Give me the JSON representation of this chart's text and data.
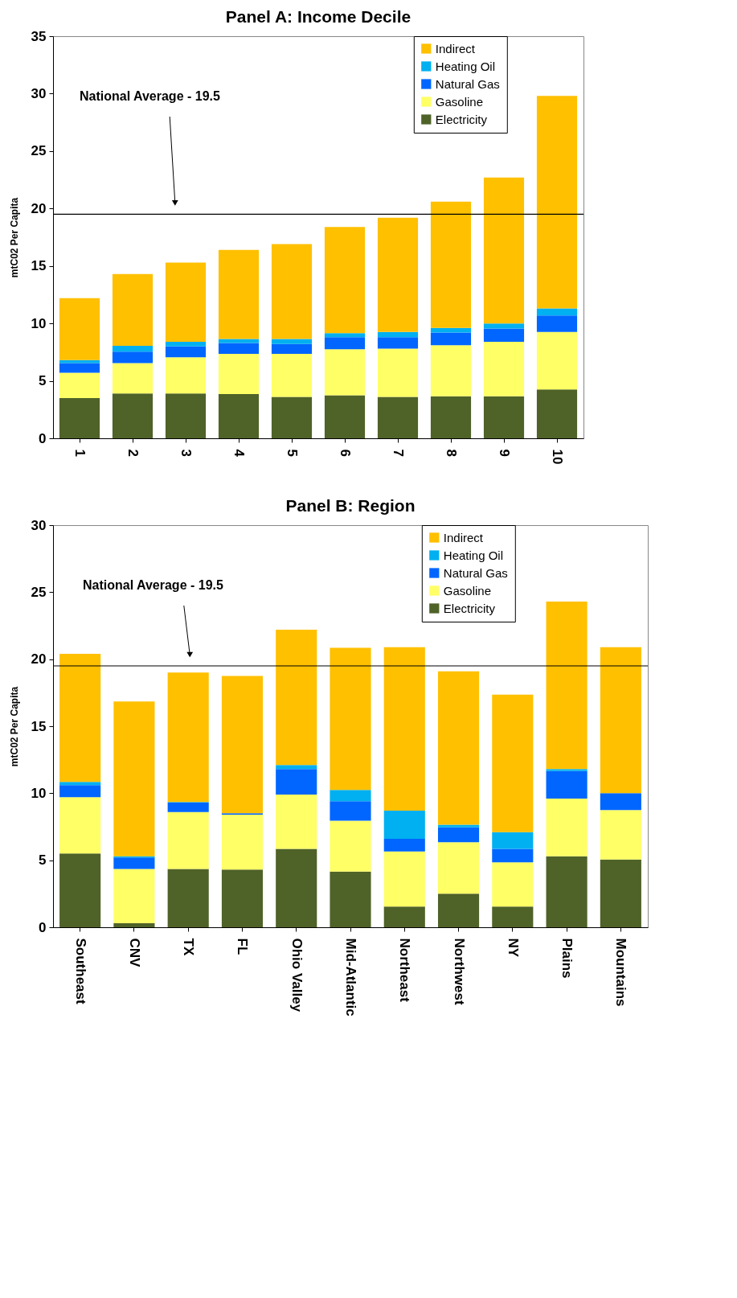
{
  "chart_data": [
    {
      "type": "bar",
      "stacked": true,
      "title": "Panel A: Income Decile",
      "ylabel": "mtC02 Per Capita",
      "categories": [
        "1",
        "2",
        "3",
        "4",
        "5",
        "6",
        "7",
        "8",
        "9",
        "10"
      ],
      "series": [
        {
          "name": "Electricity",
          "color": "#4f6228",
          "values": [
            3.5,
            3.9,
            3.9,
            3.85,
            3.6,
            3.75,
            3.6,
            3.65,
            3.65,
            4.25
          ]
        },
        {
          "name": "Gasoline",
          "color": "#ffff66",
          "values": [
            2.2,
            2.65,
            3.15,
            3.5,
            3.75,
            4.0,
            4.2,
            4.45,
            4.75,
            5.0
          ]
        },
        {
          "name": "Natural Gas",
          "color": "#0066ff",
          "values": [
            0.85,
            1.0,
            0.95,
            0.95,
            0.85,
            1.05,
            1.0,
            1.1,
            1.15,
            1.45
          ]
        },
        {
          "name": "Heating Oil",
          "color": "#00b0f0",
          "values": [
            0.25,
            0.5,
            0.4,
            0.35,
            0.45,
            0.35,
            0.45,
            0.4,
            0.45,
            0.6
          ]
        },
        {
          "name": "Indirect",
          "color": "#ffc000",
          "values": [
            5.4,
            6.25,
            6.9,
            7.75,
            8.25,
            9.25,
            9.95,
            11.0,
            12.7,
            18.5
          ]
        }
      ],
      "ylim": [
        0,
        35
      ],
      "yticks": [
        0,
        5,
        10,
        15,
        20,
        25,
        30,
        35
      ],
      "grid": false,
      "legend": "top right",
      "annotations": [
        "National Average - 19.5"
      ],
      "ref_lines": [
        {
          "axis": "y",
          "value": 19.5,
          "color": "#000000"
        }
      ]
    },
    {
      "type": "bar",
      "stacked": true,
      "title": "Panel B: Region",
      "ylabel": "mtC02 Per Capita",
      "categories": [
        "Southeast",
        "CNV",
        "TX",
        "FL",
        "Ohio Valley",
        "Mid-Atlantic",
        "Northeast",
        "Northwest",
        "NY",
        "Plains",
        "Mountains"
      ],
      "series": [
        {
          "name": "Electricity",
          "color": "#4f6228",
          "values": [
            5.5,
            0.3,
            4.35,
            4.3,
            5.85,
            4.15,
            1.55,
            2.5,
            1.55,
            5.3,
            5.05
          ]
        },
        {
          "name": "Gasoline",
          "color": "#ffff66",
          "values": [
            4.2,
            4.05,
            4.25,
            4.1,
            4.05,
            3.8,
            4.1,
            3.85,
            3.3,
            4.3,
            3.7
          ]
        },
        {
          "name": "Natural Gas",
          "color": "#0066ff",
          "values": [
            0.9,
            0.85,
            0.7,
            0.1,
            1.9,
            1.45,
            0.95,
            1.1,
            1.0,
            2.05,
            1.25
          ]
        },
        {
          "name": "Heating Oil",
          "color": "#00b0f0",
          "values": [
            0.25,
            0.1,
            0.05,
            null,
            0.3,
            0.85,
            2.1,
            0.2,
            1.25,
            0.15,
            null
          ]
        },
        {
          "name": "Indirect",
          "color": "#ffc000",
          "values": [
            9.55,
            11.55,
            9.65,
            10.25,
            10.1,
            10.6,
            12.2,
            11.45,
            10.25,
            12.5,
            10.9
          ]
        }
      ],
      "ylim": [
        0,
        30
      ],
      "yticks": [
        0,
        5,
        10,
        15,
        20,
        25,
        30
      ],
      "grid": false,
      "legend": "top right",
      "annotations": [
        "National Average - 19.5"
      ],
      "ref_lines": [
        {
          "axis": "y",
          "value": 19.5,
          "color": "#000000"
        }
      ]
    }
  ]
}
